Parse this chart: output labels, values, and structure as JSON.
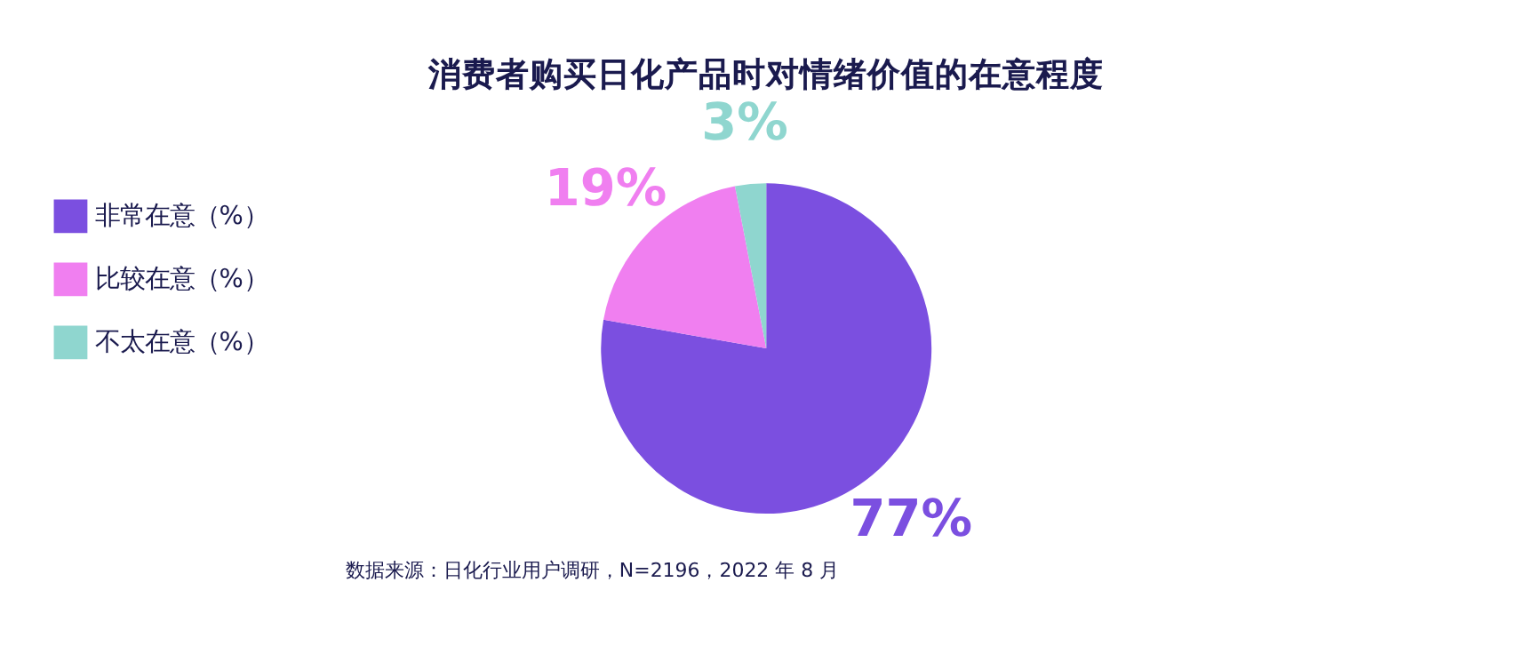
{
  "chart_data": {
    "type": "pie",
    "title": "消费者购买日化产品时对情绪价值的在意程度",
    "categories": [
      "非常在意（%）",
      "比较在意（%）",
      "不太在意（%）"
    ],
    "values": [
      77,
      19,
      3
    ],
    "colors": [
      "#7b4fe0",
      "#f07ff0",
      "#8fd6cf"
    ],
    "value_labels": [
      "77%",
      "19%",
      "3%"
    ],
    "legend": "left",
    "annotations": [
      "数据来源：日化行业用户调研，N=2196，2022 年 8 月"
    ]
  }
}
